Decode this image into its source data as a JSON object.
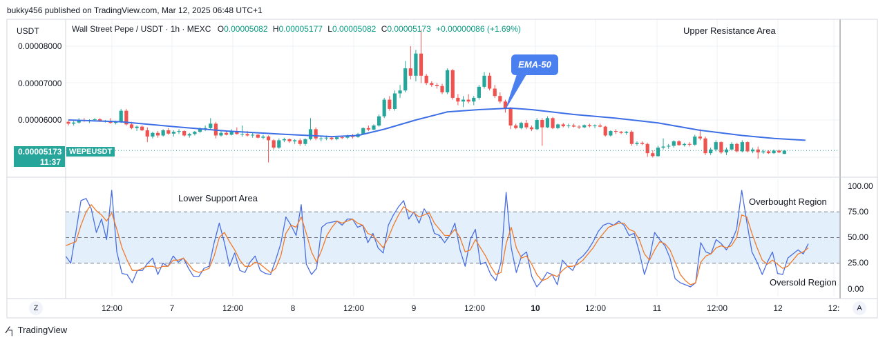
{
  "header": {
    "publisher": "bukky456 published on TradingView.com, Mar 12, 2025 06:48 UTC+1",
    "currency": "USDT",
    "symbol_line": "Wall Street Pepe / USDT · 1h · MEXC",
    "ohlc": {
      "o_label": "O",
      "o": "0.00005082",
      "h_label": "H",
      "h": "0.00005177",
      "l_label": "L",
      "l": "0.00005082",
      "c_label": "C",
      "c": "0.00005173",
      "change": "+0.00000086 (+1.69%)"
    }
  },
  "annotations": {
    "upper_resistance": "Upper Resistance Area",
    "ema_label": "EMA-50",
    "lower_support": "Lower Support Area",
    "overbought": "Overbought Region",
    "oversold": "Oversold Region"
  },
  "price_tag": {
    "value": "0.00005173",
    "time": "11:37",
    "symbol": "WEPEUSDT"
  },
  "axis": {
    "price_ticks": [
      "0.00008000",
      "0.00007000",
      "0.00006000"
    ],
    "rsi_ticks": [
      "100.00",
      "75.00",
      "50.00",
      "25.00",
      "0.00"
    ],
    "time_ticks": [
      "12:00",
      "7",
      "12:00",
      "8",
      "12:00",
      "9",
      "12:00",
      "10",
      "12:00",
      "11",
      "12:00",
      "12",
      "12:"
    ]
  },
  "buttons": {
    "zoom_z": "Z",
    "auto_a": "A"
  },
  "footer": {
    "brand": "TradingView"
  },
  "colors": {
    "up": "#26a69a",
    "down": "#ef5350",
    "ema": "#3c6ee6",
    "rsi": "#4a6ee0",
    "rsi_ma": "#f07a2a",
    "band": "#e3f0fb"
  },
  "chart_data": [
    {
      "type": "candlestick",
      "title": "Wall Street Pepe / USDT · 1h · MEXC",
      "ylim": [
        4.85e-05,
        8.75e-05
      ],
      "x_ticks": [
        "12:00",
        "7",
        "12:00",
        "8",
        "12:00",
        "9",
        "12:00",
        "10",
        "12:00",
        "11",
        "12:00",
        "12"
      ],
      "ohlc": [
        [
          5.95,
          5.98,
          5.85,
          5.9
        ],
        [
          5.9,
          5.97,
          5.85,
          5.93
        ],
        [
          5.93,
          6.05,
          5.9,
          6.0
        ],
        [
          6.0,
          6.05,
          5.95,
          5.97
        ],
        [
          5.97,
          6.02,
          5.92,
          6.0
        ],
        [
          6.0,
          6.05,
          5.96,
          6.02
        ],
        [
          6.02,
          6.05,
          5.95,
          5.97
        ],
        [
          5.97,
          6.0,
          5.93,
          5.98
        ],
        [
          5.98,
          6.05,
          5.9,
          5.92
        ],
        [
          5.92,
          5.98,
          5.88,
          5.95
        ],
        [
          5.95,
          6.3,
          5.92,
          6.25
        ],
        [
          6.25,
          6.3,
          5.85,
          5.88
        ],
        [
          5.88,
          5.95,
          5.75,
          5.78
        ],
        [
          5.78,
          5.85,
          5.7,
          5.82
        ],
        [
          5.82,
          5.85,
          5.7,
          5.72
        ],
        [
          5.72,
          5.8,
          5.4,
          5.55
        ],
        [
          5.55,
          5.68,
          5.5,
          5.65
        ],
        [
          5.65,
          5.7,
          5.52,
          5.58
        ],
        [
          5.58,
          5.75,
          5.55,
          5.72
        ],
        [
          5.72,
          5.78,
          5.6,
          5.63
        ],
        [
          5.63,
          5.72,
          5.55,
          5.68
        ],
        [
          5.68,
          5.75,
          5.62,
          5.7
        ],
        [
          5.7,
          5.72,
          5.55,
          5.58
        ],
        [
          5.58,
          5.65,
          5.52,
          5.62
        ],
        [
          5.62,
          5.7,
          5.58,
          5.68
        ],
        [
          5.68,
          5.8,
          5.65,
          5.75
        ],
        [
          5.75,
          5.85,
          5.7,
          5.78
        ],
        [
          5.78,
          6.05,
          5.75,
          5.9
        ],
        [
          5.9,
          5.95,
          5.5,
          5.58
        ],
        [
          5.58,
          5.7,
          5.55,
          5.65
        ],
        [
          5.65,
          5.72,
          5.58,
          5.6
        ],
        [
          5.6,
          5.75,
          5.58,
          5.7
        ],
        [
          5.7,
          5.8,
          5.6,
          5.62
        ],
        [
          5.62,
          5.85,
          5.55,
          5.62
        ],
        [
          5.62,
          5.7,
          5.55,
          5.58
        ],
        [
          5.58,
          5.65,
          5.52,
          5.6
        ],
        [
          5.6,
          5.62,
          5.5,
          5.52
        ],
        [
          5.52,
          5.6,
          5.48,
          5.55
        ],
        [
          5.55,
          5.58,
          4.85,
          5.45
        ],
        [
          5.45,
          5.48,
          5.2,
          5.25
        ],
        [
          5.25,
          5.5,
          5.22,
          5.45
        ],
        [
          5.45,
          5.52,
          5.4,
          5.48
        ],
        [
          5.48,
          5.5,
          5.38,
          5.42
        ],
        [
          5.42,
          5.48,
          5.35,
          5.45
        ],
        [
          5.45,
          5.5,
          5.3,
          5.35
        ],
        [
          5.35,
          5.5,
          5.3,
          5.48
        ],
        [
          5.48,
          6.05,
          5.45,
          5.75
        ],
        [
          5.75,
          5.8,
          5.45,
          5.5
        ],
        [
          5.5,
          5.55,
          5.42,
          5.5
        ],
        [
          5.5,
          5.58,
          5.45,
          5.52
        ],
        [
          5.52,
          5.56,
          5.45,
          5.48
        ],
        [
          5.48,
          5.55,
          5.45,
          5.53
        ],
        [
          5.53,
          5.56,
          5.48,
          5.52
        ],
        [
          5.52,
          5.6,
          5.48,
          5.57
        ],
        [
          5.57,
          5.62,
          5.5,
          5.54
        ],
        [
          5.54,
          5.65,
          5.52,
          5.62
        ],
        [
          5.62,
          5.8,
          5.6,
          5.78
        ],
        [
          5.78,
          5.85,
          5.7,
          5.74
        ],
        [
          5.74,
          5.88,
          5.72,
          5.85
        ],
        [
          5.85,
          6.15,
          5.82,
          6.1
        ],
        [
          6.1,
          6.6,
          6.05,
          6.55
        ],
        [
          6.55,
          6.65,
          6.25,
          6.3
        ],
        [
          6.3,
          6.8,
          6.25,
          6.72
        ],
        [
          6.72,
          6.95,
          6.6,
          6.8
        ],
        [
          6.8,
          7.6,
          6.75,
          7.4
        ],
        [
          7.4,
          8.0,
          7.1,
          7.2
        ],
        [
          7.2,
          7.9,
          7.05,
          7.8
        ],
        [
          7.8,
          8.45,
          7.0,
          7.2
        ],
        [
          7.2,
          7.25,
          6.95,
          7.0
        ],
        [
          7.0,
          7.05,
          6.9,
          6.95
        ],
        [
          6.95,
          7.0,
          6.85,
          6.92
        ],
        [
          6.92,
          6.98,
          6.7,
          6.75
        ],
        [
          6.75,
          7.4,
          6.7,
          7.35
        ],
        [
          7.35,
          7.38,
          6.55,
          6.6
        ],
        [
          6.6,
          6.7,
          6.4,
          6.5
        ],
        [
          6.5,
          6.65,
          6.35,
          6.55
        ],
        [
          6.55,
          6.7,
          6.45,
          6.5
        ],
        [
          6.5,
          6.65,
          6.4,
          6.6
        ],
        [
          6.6,
          6.95,
          6.55,
          6.9
        ],
        [
          6.9,
          7.3,
          6.85,
          7.2
        ],
        [
          7.2,
          7.28,
          6.8,
          6.85
        ],
        [
          6.85,
          6.95,
          6.6,
          6.65
        ],
        [
          6.65,
          6.75,
          6.45,
          6.5
        ],
        [
          6.5,
          6.55,
          6.2,
          6.3
        ],
        [
          6.3,
          6.35,
          5.75,
          5.85
        ],
        [
          5.85,
          5.9,
          5.75,
          5.78
        ],
        [
          5.78,
          5.95,
          5.75,
          5.92
        ],
        [
          5.92,
          6.0,
          5.75,
          5.8
        ],
        [
          5.8,
          5.85,
          5.7,
          5.75
        ],
        [
          5.75,
          6.05,
          5.72,
          6.0
        ],
        [
          6.0,
          6.05,
          5.3,
          5.8
        ],
        [
          5.8,
          6.1,
          5.78,
          6.05
        ],
        [
          6.05,
          6.08,
          5.75,
          5.78
        ],
        [
          5.78,
          5.9,
          5.75,
          5.88
        ],
        [
          5.88,
          5.92,
          5.8,
          5.83
        ],
        [
          5.83,
          5.9,
          5.78,
          5.85
        ],
        [
          5.85,
          5.9,
          5.8,
          5.82
        ],
        [
          5.82,
          5.86,
          5.76,
          5.8
        ],
        [
          5.8,
          5.88,
          5.78,
          5.86
        ],
        [
          5.86,
          5.9,
          5.8,
          5.83
        ],
        [
          5.83,
          5.88,
          5.78,
          5.85
        ],
        [
          5.85,
          5.9,
          5.8,
          5.82
        ],
        [
          5.82,
          5.84,
          5.55,
          5.58
        ],
        [
          5.58,
          5.72,
          5.55,
          5.7
        ],
        [
          5.7,
          5.75,
          5.62,
          5.68
        ],
        [
          5.68,
          5.7,
          5.62,
          5.65
        ],
        [
          5.65,
          5.7,
          5.6,
          5.68
        ],
        [
          5.68,
          5.72,
          5.3,
          5.35
        ],
        [
          5.35,
          5.42,
          5.3,
          5.38
        ],
        [
          5.38,
          5.42,
          5.32,
          5.35
        ],
        [
          5.35,
          5.38,
          5.0,
          5.1
        ],
        [
          5.1,
          5.18,
          4.98,
          5.02
        ],
        [
          5.02,
          5.3,
          5.0,
          5.25
        ],
        [
          5.25,
          5.5,
          5.2,
          5.28
        ],
        [
          5.28,
          5.35,
          5.22,
          5.3
        ],
        [
          5.3,
          5.45,
          5.25,
          5.42
        ],
        [
          5.42,
          5.45,
          5.3,
          5.32
        ],
        [
          5.32,
          5.38,
          5.28,
          5.35
        ],
        [
          5.35,
          5.4,
          5.28,
          5.33
        ],
        [
          5.33,
          5.6,
          5.3,
          5.55
        ],
        [
          5.55,
          5.75,
          5.45,
          5.5
        ],
        [
          5.5,
          5.55,
          5.05,
          5.1
        ],
        [
          5.1,
          5.25,
          5.05,
          5.2
        ],
        [
          5.2,
          5.45,
          5.15,
          5.4
        ],
        [
          5.4,
          5.42,
          5.08,
          5.12
        ],
        [
          5.12,
          5.25,
          5.05,
          5.2
        ],
        [
          5.2,
          5.4,
          5.18,
          5.35
        ],
        [
          5.35,
          5.38,
          5.12,
          5.15
        ],
        [
          5.15,
          5.45,
          5.12,
          5.4
        ],
        [
          5.4,
          5.42,
          5.12,
          5.15
        ],
        [
          5.15,
          5.25,
          5.1,
          5.2
        ],
        [
          5.2,
          5.28,
          4.95,
          5.12
        ],
        [
          5.12,
          5.2,
          5.08,
          5.15
        ],
        [
          5.15,
          5.18,
          5.08,
          5.1
        ],
        [
          5.1,
          5.2,
          5.08,
          5.17
        ],
        [
          5.17,
          5.2,
          5.1,
          5.12
        ],
        [
          5.08,
          5.18,
          5.08,
          5.17
        ]
      ],
      "ema50": [
        [
          0,
          6.0
        ],
        [
          10,
          5.95
        ],
        [
          20,
          5.82
        ],
        [
          30,
          5.7
        ],
        [
          40,
          5.62
        ],
        [
          50,
          5.55
        ],
        [
          55,
          5.58
        ],
        [
          60,
          5.75
        ],
        [
          66,
          6.0
        ],
        [
          72,
          6.22
        ],
        [
          78,
          6.28
        ],
        [
          84,
          6.32
        ],
        [
          88,
          6.28
        ],
        [
          96,
          6.15
        ],
        [
          104,
          6.05
        ],
        [
          112,
          5.92
        ],
        [
          120,
          5.72
        ],
        [
          128,
          5.58
        ],
        [
          134,
          5.5
        ],
        [
          140,
          5.45
        ]
      ],
      "y_ticks": [
        "0.00008000",
        "0.00007000",
        "0.00006000"
      ]
    },
    {
      "type": "line",
      "title": "",
      "ylim": [
        0,
        100
      ],
      "y_ticks": [
        100,
        75,
        50,
        25,
        0
      ],
      "bands": [
        25,
        50,
        75
      ],
      "series": [
        {
          "values": [
            32,
            25,
            55,
            86,
            88,
            78,
            55,
            68,
            48,
            96,
            36,
            15,
            14,
            6,
            18,
            18,
            25,
            30,
            14,
            25,
            22,
            32,
            26,
            30,
            20,
            12,
            12,
            20,
            22,
            45,
            64,
            45,
            22,
            35,
            18,
            16,
            26,
            32,
            18,
            15,
            14,
            28,
            44,
            70,
            62,
            52,
            82,
            24,
            14,
            20,
            60,
            64,
            65,
            66,
            62,
            68,
            68,
            60,
            62,
            45,
            54,
            40,
            35,
            62,
            72,
            80,
            86,
            68,
            75,
            64,
            78,
            70,
            54,
            52,
            45,
            52,
            64,
            38,
            22,
            48,
            58,
            24,
            26,
            14,
            8,
            26,
            94,
            40,
            16,
            32,
            36,
            12,
            2,
            8,
            16,
            14,
            4,
            28,
            22,
            18,
            28,
            32,
            38,
            46,
            56,
            62,
            64,
            62,
            66,
            62,
            52,
            54,
            36,
            14,
            30,
            55,
            48,
            42,
            30,
            10,
            6,
            4,
            2,
            6,
            45,
            36,
            34,
            48,
            44,
            38,
            46,
            58,
            96,
            65,
            36,
            26,
            14,
            26,
            36,
            15,
            14,
            30,
            34,
            38,
            34,
            44
          ]
        },
        {
          "values": [
            42,
            44,
            46,
            62,
            75,
            82,
            76,
            72,
            66,
            74,
            58,
            40,
            28,
            18,
            18,
            20,
            22,
            22,
            20,
            22,
            22,
            28,
            28,
            30,
            24,
            18,
            16,
            18,
            20,
            32,
            50,
            55,
            46,
            38,
            28,
            22,
            22,
            26,
            24,
            20,
            16,
            20,
            32,
            54,
            62,
            60,
            70,
            54,
            36,
            26,
            38,
            52,
            60,
            66,
            64,
            66,
            68,
            64,
            62,
            54,
            52,
            46,
            40,
            50,
            62,
            72,
            80,
            76,
            74,
            70,
            72,
            74,
            64,
            58,
            52,
            52,
            58,
            50,
            36,
            38,
            48,
            40,
            32,
            22,
            14,
            16,
            44,
            60,
            40,
            30,
            32,
            24,
            14,
            8,
            10,
            14,
            12,
            18,
            22,
            22,
            24,
            28,
            34,
            40,
            48,
            54,
            60,
            62,
            64,
            64,
            58,
            56,
            48,
            34,
            28,
            38,
            46,
            44,
            38,
            26,
            14,
            8,
            4,
            6,
            26,
            32,
            34,
            40,
            42,
            40,
            42,
            50,
            72,
            70,
            54,
            40,
            28,
            24,
            28,
            24,
            20,
            22,
            28,
            34,
            36,
            40
          ]
        }
      ]
    }
  ]
}
